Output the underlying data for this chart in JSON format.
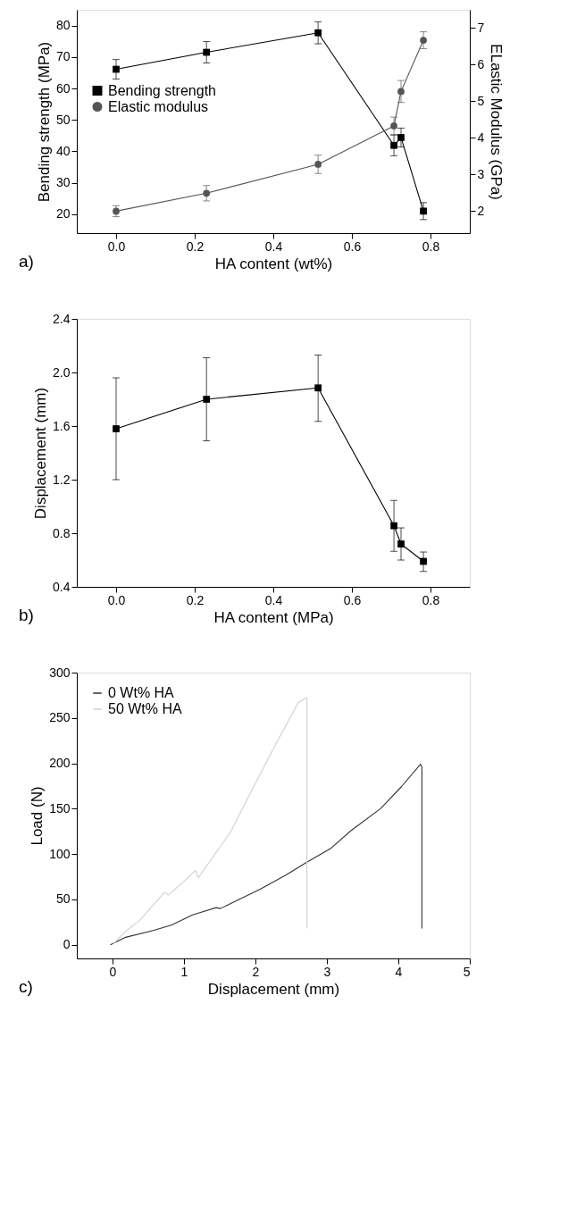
{
  "chart_data": [
    {
      "type": "line",
      "xlabel": "HA content (wt%)",
      "ylabel": "Bending strength (MPa)",
      "y2label": "ELastic Modulus (GPa)",
      "x": [
        0.0,
        0.23,
        0.514,
        0.707,
        0.725,
        0.782
      ],
      "series": [
        {
          "name": "Bending strength",
          "color": "#000000",
          "marker": "square",
          "values": [
            66.1,
            71.5,
            77.7,
            41.9,
            44.4,
            21.0
          ],
          "errors": [
            3.1,
            3.4,
            3.5,
            3.3,
            3.0,
            2.7
          ]
        },
        {
          "name": "Elastic modulus",
          "color": "#555555",
          "marker": "circle",
          "axis": "y2",
          "values": [
            2.0,
            2.49,
            3.28,
            4.33,
            5.27,
            6.67
          ],
          "errors": [
            0.15,
            0.21,
            0.25,
            0.24,
            0.3,
            0.23
          ]
        }
      ],
      "xlim": [
        -0.1,
        0.9
      ],
      "xticks": [
        {
          "value": 0,
          "label": "0.0"
        },
        0.2,
        0.4,
        0.6,
        0.8
      ],
      "ylim": [
        14,
        85
      ],
      "yticks": [
        20,
        30,
        40,
        50,
        60,
        70,
        80
      ],
      "y2lim": [
        1.4,
        7.5
      ],
      "y2ticks": [
        2,
        3,
        4,
        5,
        6,
        7
      ],
      "legend": "left",
      "annotations": [
        "a)"
      ]
    },
    {
      "type": "line",
      "xlabel": "HA content (MPa)",
      "ylabel": "Displacement (mm)",
      "x": [
        0.0,
        0.23,
        0.514,
        0.707,
        0.725,
        0.782
      ],
      "series": [
        {
          "color": "#000000",
          "marker": "square",
          "values": [
            1.58,
            1.8,
            1.885,
            0.856,
            0.72,
            0.59
          ],
          "errors": [
            [
              1.2,
              1.96
            ],
            [
              1.49,
              2.11
            ],
            [
              1.635,
              2.13
            ],
            [
              0.665,
              1.045
            ],
            [
              0.6,
              0.84
            ],
            [
              0.515,
              0.66
            ]
          ]
        }
      ],
      "xlim": [
        -0.1,
        0.9
      ],
      "xticks": [
        {
          "value": 0,
          "label": "0.0"
        },
        0.2,
        0.4,
        0.6,
        0.8
      ],
      "ylim": [
        0.4,
        2.4
      ],
      "yticks": [
        0.4,
        0.8,
        1.2,
        1.6,
        {
          "value": 2,
          "label": "2.0"
        },
        2.4
      ],
      "annotations": [
        "b)"
      ]
    },
    {
      "type": "line",
      "xlabel": "Displacement (mm)",
      "ylabel": "Load (N)",
      "series": [
        {
          "name": "0 Wt% HA",
          "color": "#333333",
          "x": [
            -0.03,
            0.17,
            0.58,
            0.83,
            1.12,
            1.45,
            1.51,
            1.77,
            2.06,
            2.43,
            2.72,
            3.05,
            3.34,
            3.75,
            4.04,
            4.31,
            4.33,
            4.33
          ],
          "values": [
            0,
            8,
            16,
            22,
            33,
            41,
            40,
            50,
            61,
            77,
            91,
            106,
            126,
            150,
            174,
            199,
            196,
            18
          ]
        },
        {
          "name": "50 Wt% HA",
          "color": "#d0d0d0",
          "x": [
            0.01,
            0.17,
            0.38,
            0.73,
            0.78,
            0.99,
            1.16,
            1.2,
            1.65,
            1.9,
            2.31,
            2.6,
            2.7,
            2.72,
            2.72
          ],
          "values": [
            1,
            14,
            27,
            58,
            55,
            69,
            82,
            74,
            124,
            163,
            225,
            267,
            272,
            272,
            18
          ]
        }
      ],
      "xlim": [
        -0.5,
        5
      ],
      "xticks": [
        0,
        1,
        2,
        3,
        4,
        5
      ],
      "ylim": [
        -15,
        300
      ],
      "yticks": [
        0,
        50,
        100,
        150,
        200,
        250,
        300
      ],
      "legend": "top left",
      "annotations": [
        "c)"
      ]
    }
  ]
}
